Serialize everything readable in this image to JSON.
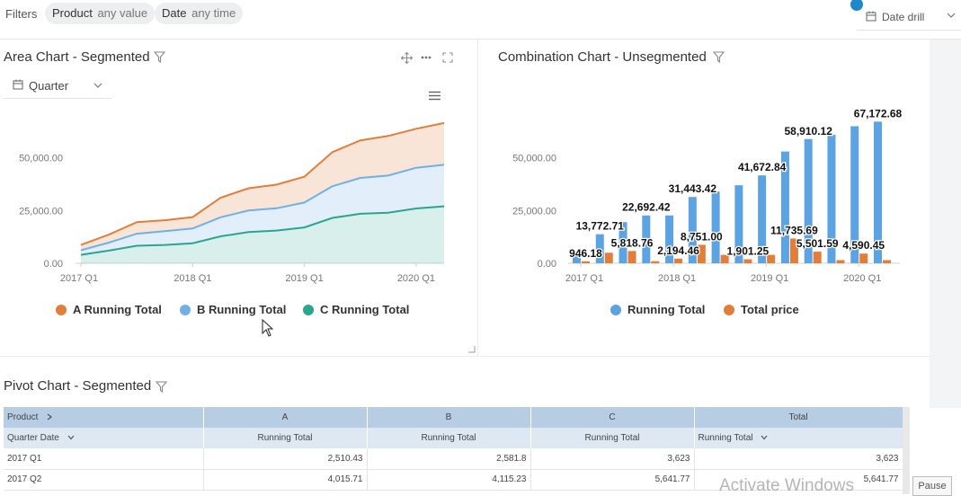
{
  "filter_bar": {
    "label": "Filters",
    "chips": [
      {
        "name": "Product",
        "value": "any value"
      },
      {
        "name": "Date",
        "value": "any time"
      }
    ],
    "date_drill": "Date drill"
  },
  "area_widget": {
    "title": "Area Chart - Segmented",
    "quarter_select": "Quarter"
  },
  "combo_widget": {
    "title": "Combination Chart - Unsegmented"
  },
  "pivot_widget": {
    "title": "Pivot Chart - Segmented",
    "header_row1": [
      "Product",
      "A",
      "B",
      "C",
      "Total"
    ],
    "header_row2": [
      "Quarter Date",
      "Running Total",
      "Running Total",
      "Running Total",
      "Running Total"
    ],
    "rows": [
      [
        "2017 Q1",
        "2,510.43",
        "2,581.8",
        "3,623",
        "3,623"
      ],
      [
        "2017 Q2",
        "4,015.71",
        "4,115.23",
        "5,641.77",
        "5,641.77"
      ]
    ]
  },
  "chart_data": [
    {
      "type": "area",
      "title": "Area Chart - Segmented",
      "x": [
        "2017 Q1",
        "2017 Q2",
        "2017 Q3",
        "2017 Q4",
        "2018 Q1",
        "2018 Q2",
        "2018 Q3",
        "2018 Q4",
        "2019 Q1",
        "2019 Q2",
        "2019 Q3",
        "2019 Q4",
        "2020 Q1",
        "2020 Q2"
      ],
      "tick_labels": [
        "2017 Q1",
        "2018 Q1",
        "2019 Q1",
        "2020 Q1"
      ],
      "y_tick_labels": [
        "0.00",
        "25,000.00",
        "50,000.00"
      ],
      "ylim": [
        0,
        75000
      ],
      "stacked": true,
      "series": [
        {
          "name": "C Running Total",
          "color": "#2aa58e",
          "values": [
            4000,
            6000,
            8300,
            8700,
            9500,
            12800,
            14800,
            15500,
            17000,
            21500,
            23500,
            24000,
            26000,
            27000
          ]
        },
        {
          "name": "B Running Total",
          "color": "#6fb1e6",
          "values": [
            2200,
            3800,
            5700,
            6500,
            7000,
            9000,
            10200,
            10600,
            11800,
            15000,
            17000,
            17600,
            19300,
            19700
          ]
        },
        {
          "name": "A Running Total",
          "color": "#e37d3a",
          "values": [
            2500,
            3800,
            5500,
            5200,
            5400,
            9300,
            10600,
            11200,
            12300,
            16200,
            17800,
            18800,
            18500,
            19800
          ]
        }
      ]
    },
    {
      "type": "bar",
      "title": "Combination Chart - Unsegmented",
      "x": [
        "2017 Q1",
        "2017 Q2",
        "2017 Q3",
        "2017 Q4",
        "2018 Q1",
        "2018 Q2",
        "2018 Q3",
        "2018 Q4",
        "2019 Q1",
        "2019 Q2",
        "2019 Q3",
        "2019 Q4",
        "2020 Q1",
        "2020 Q2"
      ],
      "tick_labels": [
        "2017 Q1",
        "2018 Q1",
        "2019 Q1",
        "2020 Q1"
      ],
      "y_tick_labels": [
        "0.00",
        "25,000.00",
        "50,000.00"
      ],
      "ylim": [
        0,
        75000
      ],
      "series": [
        {
          "name": "Running Total",
          "color": "#5ba3e2",
          "values": [
            5500,
            13772.71,
            19500,
            22692.42,
            22692.42,
            31443.42,
            34000,
            37000,
            41672.84,
            53000,
            58910.12,
            61000,
            65000,
            67172.68
          ]
        },
        {
          "name": "Total price",
          "color": "#e37d3a",
          "values": [
            946.18,
            5000,
            5818.76,
            1000,
            2194.46,
            8751.0,
            4000,
            1901.25,
            4000,
            11735.69,
            5501.59,
            1500,
            4590.45,
            1500
          ]
        }
      ],
      "annotations": [
        {
          "text": "946.18",
          "series": 1,
          "index": 0
        },
        {
          "text": "13,772.71",
          "series": 0,
          "index": 1
        },
        {
          "text": "5,818.76",
          "series": 1,
          "index": 2
        },
        {
          "text": "22,692.42",
          "series": 0,
          "index": 3
        },
        {
          "text": "2,194.46",
          "series": 1,
          "index": 4
        },
        {
          "text": "31,443.42",
          "series": 0,
          "index": 5
        },
        {
          "text": "8,751.00",
          "series": 1,
          "index": 5
        },
        {
          "text": "1,901.25",
          "series": 1,
          "index": 7
        },
        {
          "text": "41,672.84",
          "series": 0,
          "index": 8
        },
        {
          "text": "11,735.69",
          "series": 1,
          "index": 9
        },
        {
          "text": "58,910.12",
          "series": 0,
          "index": 10
        },
        {
          "text": "5,501.59",
          "series": 1,
          "index": 10
        },
        {
          "text": "4,590.45",
          "series": 1,
          "index": 12
        },
        {
          "text": "67,172.68",
          "series": 0,
          "index": 13
        }
      ]
    }
  ],
  "system": {
    "watermark": "Activate Windows",
    "pause_label": "Pause"
  }
}
